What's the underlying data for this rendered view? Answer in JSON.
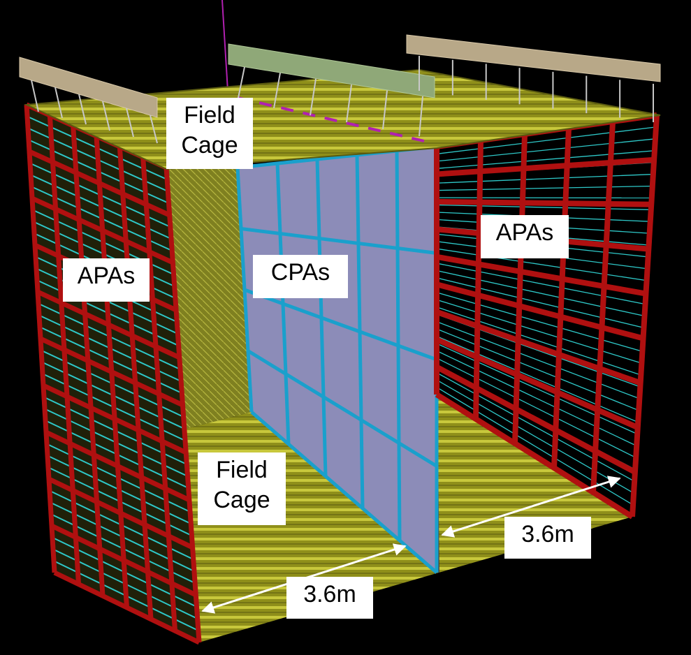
{
  "labels": {
    "field_cage_top": [
      "Field",
      "Cage"
    ],
    "apas_left": "APAs",
    "cpas": "CPAs",
    "apas_right": "APAs",
    "field_cage_bottom": [
      "Field",
      "Cage"
    ],
    "dim_left": "3.6m",
    "dim_right": "3.6m"
  },
  "colors": {
    "background": "#000000",
    "apa_frame": "#b01010",
    "apa_wire": "#2ec8c8",
    "cpa_panel": "#8c8cb8",
    "cpa_frame": "#1aa0cc",
    "field_cage": "#8f8f1a",
    "field_cage_stripe": "#c8c83c",
    "support_beam": "#b8a888",
    "support_beam_mid": "#8fa878",
    "hanger_rod": "#c8c8c8",
    "dimension_arrow": "#ffffff"
  }
}
